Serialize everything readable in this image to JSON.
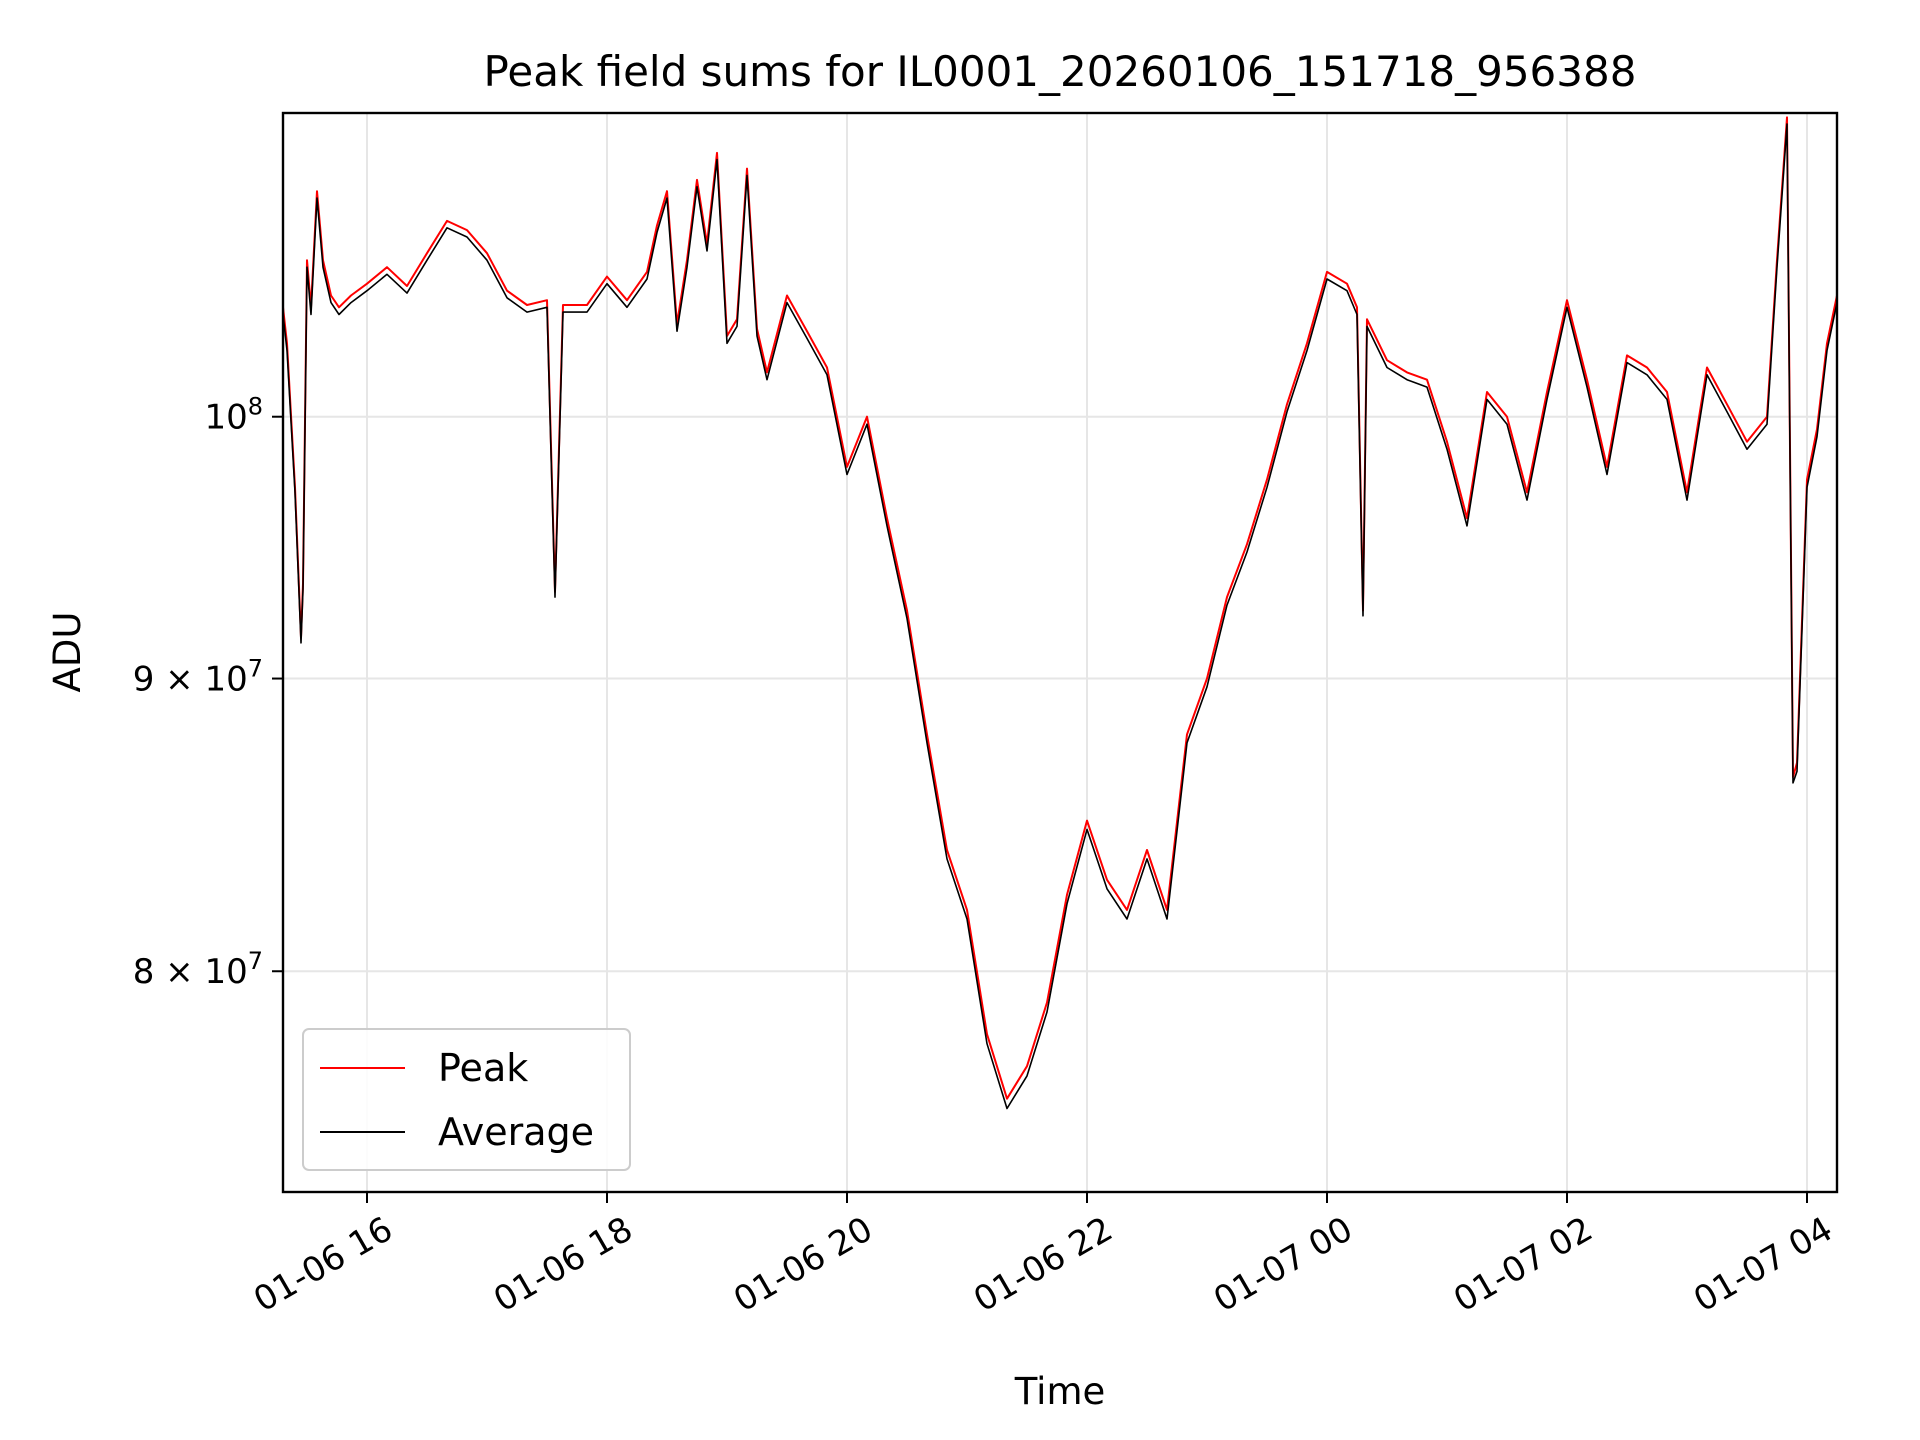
{
  "chart_data": {
    "type": "line",
    "title": "Peak field sums for IL0001_20260106_151718_956388",
    "xlabel": "Time",
    "ylabel": "ADU",
    "x_ticks": [
      "01-06 16",
      "01-06 18",
      "01-06 20",
      "01-06 22",
      "01-07 00",
      "01-07 02",
      "01-07 04"
    ],
    "y_scale": "log",
    "y_ticks": [
      {
        "value": 80000000,
        "mantissa": "8",
        "base": "10",
        "exp": "7"
      },
      {
        "value": 90000000,
        "mantissa": "9",
        "base": "10",
        "exp": "7"
      },
      {
        "value": 100000000,
        "mantissa": "",
        "base": "10",
        "exp": "8"
      }
    ],
    "xlim": [
      "01-06 15:18",
      "01-07 04:15"
    ],
    "ylim": [
      73200000,
      113000000
    ],
    "grid": true,
    "legend": {
      "position": "lower-left",
      "entries": [
        "Peak",
        "Average"
      ]
    },
    "x_dates": [
      "01-06 15:18",
      "01-06 15:20",
      "01-06 15:24",
      "01-06 15:27",
      "01-06 15:28",
      "01-06 15:30",
      "01-06 15:32",
      "01-06 15:35",
      "01-06 15:38",
      "01-06 15:42",
      "01-06 15:46",
      "01-06 15:52",
      "01-06 16:00",
      "01-06 16:10",
      "01-06 16:20",
      "01-06 16:30",
      "01-06 16:40",
      "01-06 16:50",
      "01-06 17:00",
      "01-06 17:10",
      "01-06 17:20",
      "01-06 17:30",
      "01-06 17:34",
      "01-06 17:38",
      "01-06 17:42",
      "01-06 17:50",
      "01-06 18:00",
      "01-06 18:10",
      "01-06 18:20",
      "01-06 18:25",
      "01-06 18:30",
      "01-06 18:35",
      "01-06 18:40",
      "01-06 18:45",
      "01-06 18:50",
      "01-06 18:55",
      "01-06 19:00",
      "01-06 19:05",
      "01-06 19:10",
      "01-06 19:15",
      "01-06 19:20",
      "01-06 19:30",
      "01-06 19:40",
      "01-06 19:50",
      "01-06 20:00",
      "01-06 20:10",
      "01-06 20:20",
      "01-06 20:30",
      "01-06 20:40",
      "01-06 20:50",
      "01-06 21:00",
      "01-06 21:10",
      "01-06 21:20",
      "01-06 21:30",
      "01-06 21:40",
      "01-06 21:50",
      "01-06 22:00",
      "01-06 22:10",
      "01-06 22:20",
      "01-06 22:30",
      "01-06 22:40",
      "01-06 22:50",
      "01-06 23:00",
      "01-06 23:10",
      "01-06 23:20",
      "01-06 23:30",
      "01-06 23:40",
      "01-06 23:50",
      "01-07 00:00",
      "01-07 00:10",
      "01-07 00:15",
      "01-07 00:18",
      "01-07 00:20",
      "01-07 00:30",
      "01-07 00:40",
      "01-07 00:50",
      "01-07 01:00",
      "01-07 01:10",
      "01-07 01:20",
      "01-07 01:30",
      "01-07 01:40",
      "01-07 01:50",
      "01-07 02:00",
      "01-07 02:10",
      "01-07 02:20",
      "01-07 02:30",
      "01-07 02:40",
      "01-07 02:50",
      "01-07 03:00",
      "01-07 03:10",
      "01-07 03:20",
      "01-07 03:30",
      "01-07 03:40",
      "01-07 03:45",
      "01-07 03:50",
      "01-07 03:53",
      "01-07 03:55",
      "01-07 04:00",
      "01-07 04:05",
      "01-07 04:10",
      "01-07 04:15"
    ],
    "series": [
      {
        "name": "Peak",
        "color": "#ff0000",
        "values": [
          104500000,
          103000000,
          97200000,
          91500000,
          93500000,
          106500000,
          104500000,
          109500000,
          106500000,
          105000000,
          104500000,
          105000000,
          105500000,
          106200000,
          105400000,
          106800000,
          108200000,
          107800000,
          106800000,
          105200000,
          104600000,
          104800000,
          93200000,
          104600000,
          104600000,
          104600000,
          105800000,
          104800000,
          106000000,
          108000000,
          109500000,
          103800000,
          106500000,
          110000000,
          107200000,
          111200000,
          103300000,
          104000000,
          110500000,
          103600000,
          101800000,
          105000000,
          103500000,
          102000000,
          98000000,
          100000000,
          96000000,
          92500000,
          88000000,
          84000000,
          82000000,
          78000000,
          76000000,
          77000000,
          79000000,
          82500000,
          85000000,
          83000000,
          82000000,
          84000000,
          82000000,
          88000000,
          90000000,
          93000000,
          95000000,
          97500000,
          100500000,
          103000000,
          106000000,
          105500000,
          104500000,
          92500000,
          104000000,
          102300000,
          101800000,
          101500000,
          99000000,
          96000000,
          101000000,
          100000000,
          97000000,
          101000000,
          104800000,
          101500000,
          98000000,
          102500000,
          102000000,
          101000000,
          97000000,
          102000000,
          100500000,
          99000000,
          100000000,
          106500000,
          112800000,
          86500000,
          87000000,
          97500000,
          99500000,
          103000000,
          105000000
        ]
      },
      {
        "name": "Average",
        "color": "#000000",
        "values": [
          104200000,
          102700000,
          97000000,
          91300000,
          93300000,
          106200000,
          104200000,
          109200000,
          106200000,
          104700000,
          104200000,
          104700000,
          105200000,
          105900000,
          105100000,
          106500000,
          107900000,
          107500000,
          106500000,
          104900000,
          104300000,
          104500000,
          93000000,
          104300000,
          104300000,
          104300000,
          105500000,
          104500000,
          105700000,
          107700000,
          109200000,
          103500000,
          106200000,
          109700000,
          106900000,
          110900000,
          103000000,
          103700000,
          110200000,
          103300000,
          101500000,
          104700000,
          103200000,
          101700000,
          97700000,
          99700000,
          95700000,
          92200000,
          87700000,
          83700000,
          81700000,
          77700000,
          75700000,
          76700000,
          78700000,
          82200000,
          84700000,
          82700000,
          81700000,
          83700000,
          81700000,
          87700000,
          89700000,
          92700000,
          94700000,
          97200000,
          100200000,
          102700000,
          105700000,
          105200000,
          104200000,
          92300000,
          103700000,
          102000000,
          101500000,
          101200000,
          98700000,
          95700000,
          100700000,
          99700000,
          96700000,
          100700000,
          104500000,
          101200000,
          97700000,
          102200000,
          101700000,
          100700000,
          96700000,
          101700000,
          100200000,
          98700000,
          99700000,
          106200000,
          112500000,
          86300000,
          86700000,
          97200000,
          99200000,
          102700000,
          104700000
        ]
      }
    ]
  }
}
